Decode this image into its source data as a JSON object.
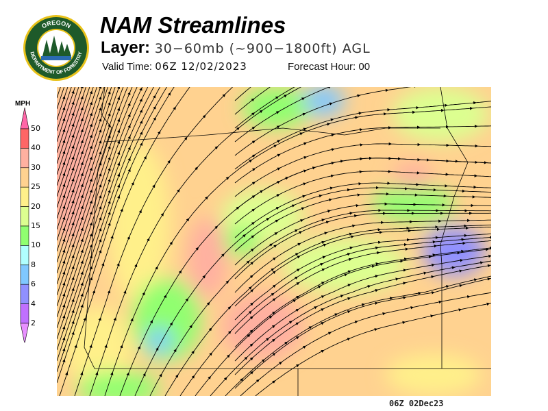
{
  "header": {
    "title": "NAM Streamlines",
    "layer_label": "Layer:",
    "layer_value": "30−60mb (~900−1800ft) AGL",
    "valid_label": "Valid Time:",
    "valid_value": "06Z 12/02/2023",
    "forecast_label": "Forecast Hour:",
    "forecast_value": "00"
  },
  "logo": {
    "top_text": "OREGON",
    "bottom_text": "DEPARTMENT OF FORESTRY",
    "colors": {
      "ring": "#1e5a2a",
      "border": "#e8c21a"
    }
  },
  "legend": {
    "unit": "MPH",
    "ticks": [
      "50",
      "40",
      "30",
      "25",
      "20",
      "15",
      "10",
      "8",
      "6",
      "4",
      "2"
    ],
    "colors": [
      "#ff66a8",
      "#ff6666",
      "#ffb0a0",
      "#ffd290",
      "#fff08a",
      "#dcff90",
      "#90ff70",
      "#b0ffff",
      "#80c8ff",
      "#9090ff",
      "#c070ff",
      "#e890ff"
    ]
  },
  "map": {
    "background": "#ffd290"
  },
  "footer": {
    "timestamp": "06Z 02Dec23"
  }
}
